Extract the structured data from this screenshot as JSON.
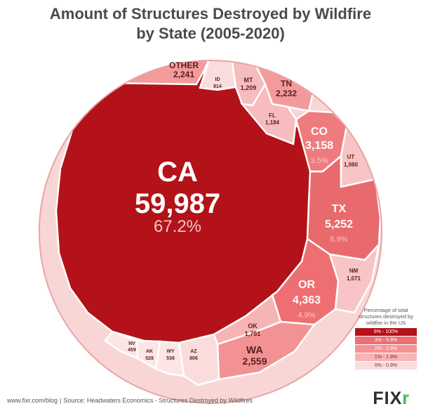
{
  "title_line1": "Amount of Structures Destroyed by Wildfire",
  "title_line2": "by State (2005-2020)",
  "chart_data": {
    "type": "voronoi-treemap",
    "title": "Amount of Structures Destroyed by Wildfire by State (2005-2020)",
    "cells": [
      {
        "state": "CA",
        "value": "59,987",
        "percent": "67.2%",
        "color": "#b31219"
      },
      {
        "state": "TX",
        "value": "5,252",
        "percent": "5.9%",
        "color": "#e86a6d"
      },
      {
        "state": "OR",
        "value": "4,363",
        "percent": "4.9%",
        "color": "#ee6f72"
      },
      {
        "state": "CO",
        "value": "3,158",
        "percent": "3.5%",
        "color": "#ee7b7e"
      },
      {
        "state": "WA",
        "value": "2,559",
        "percent": "",
        "color": "#f29295"
      },
      {
        "state": "OTHER",
        "value": "2,241",
        "percent": "",
        "color": "#f39a9c"
      },
      {
        "state": "TN",
        "value": "2,232",
        "percent": "",
        "color": "#f39a9c"
      },
      {
        "state": "OK",
        "value": "1,751",
        "percent": "",
        "color": "#f6b4b6"
      },
      {
        "state": "MT",
        "value": "1,209",
        "percent": "",
        "color": "#f7bcbe"
      },
      {
        "state": "FL",
        "value": "1,184",
        "percent": "",
        "color": "#f7bcbe"
      },
      {
        "state": "NM",
        "value": "1,071",
        "percent": "",
        "color": "#f8c4c5"
      },
      {
        "state": "UT",
        "value": "1,060",
        "percent": "",
        "color": "#f8c4c5"
      },
      {
        "state": "ID",
        "value": "814",
        "percent": "",
        "color": "#fbdcdc"
      },
      {
        "state": "AZ",
        "value": "806",
        "percent": "",
        "color": "#fbdcdc"
      },
      {
        "state": "WY",
        "value": "536",
        "percent": "",
        "color": "#fce5e5"
      },
      {
        "state": "AK",
        "value": "528",
        "percent": "",
        "color": "#fce5e5"
      },
      {
        "state": "NV",
        "value": "459",
        "percent": "",
        "color": "#fce5e5"
      }
    ],
    "legend_title": "Percentage of total structures destroyed by wildfire in the US",
    "legend": [
      {
        "label": "6% - 100%",
        "color": "#b31219"
      },
      {
        "label": "3% - 5.9%",
        "color": "#ee6f72"
      },
      {
        "label": "2% - 2.9%",
        "color": "#f29295"
      },
      {
        "label": "1% - 1.9%",
        "color": "#f6b4b6"
      },
      {
        "label": "0% - 0.9%",
        "color": "#fbdcdc"
      }
    ]
  },
  "footer": {
    "url": "www.fixr.com/blog",
    "separator": "|",
    "source": "Source: Headwaters Economics - Structures Destroyed by Wildfires"
  },
  "logo": {
    "main": "FIX",
    "accent": "r"
  }
}
